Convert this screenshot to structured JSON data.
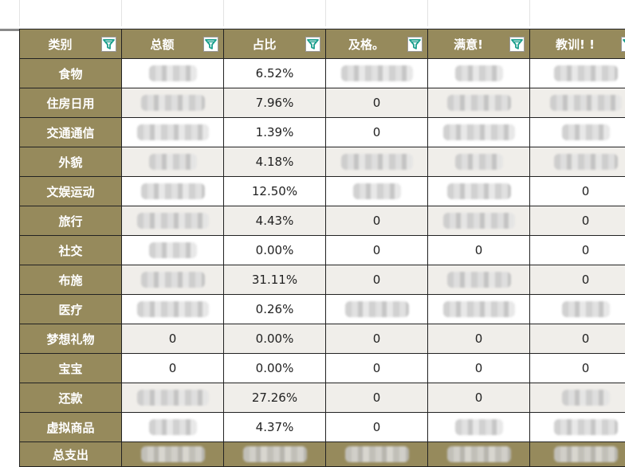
{
  "columns": [
    {
      "label": "类别"
    },
    {
      "label": "总额"
    },
    {
      "label": "占比"
    },
    {
      "label": "及格。"
    },
    {
      "label": "满意!"
    },
    {
      "label": "教训! !"
    }
  ],
  "rows": [
    {
      "category": "食物",
      "total": null,
      "share": "6.52%",
      "pass": null,
      "satisfied": null,
      "lesson": null
    },
    {
      "category": "住房日用",
      "total": null,
      "share": "7.96%",
      "pass": "0",
      "satisfied": null,
      "lesson": null
    },
    {
      "category": "交通通信",
      "total": null,
      "share": "1.39%",
      "pass": "0",
      "satisfied": null,
      "lesson": null
    },
    {
      "category": "外貌",
      "total": null,
      "share": "4.18%",
      "pass": null,
      "satisfied": null,
      "lesson": null
    },
    {
      "category": "文娱运动",
      "total": null,
      "share": "12.50%",
      "pass": null,
      "satisfied": null,
      "lesson": "0"
    },
    {
      "category": "旅行",
      "total": null,
      "share": "4.43%",
      "pass": "0",
      "satisfied": null,
      "lesson": "0"
    },
    {
      "category": "社交",
      "total": null,
      "share": "0.00%",
      "pass": "0",
      "satisfied": "0",
      "lesson": "0"
    },
    {
      "category": "布施",
      "total": null,
      "share": "31.11%",
      "pass": "0",
      "satisfied": null,
      "lesson": "0"
    },
    {
      "category": "医疗",
      "total": null,
      "share": "0.26%",
      "pass": null,
      "satisfied": null,
      "lesson": null
    },
    {
      "category": "梦想礼物",
      "total": "0",
      "share": "0.00%",
      "pass": "0",
      "satisfied": "0",
      "lesson": "0"
    },
    {
      "category": "宝宝",
      "total": "0",
      "share": "0.00%",
      "pass": "0",
      "satisfied": "0",
      "lesson": "0"
    },
    {
      "category": "还款",
      "total": null,
      "share": "27.26%",
      "pass": "0",
      "satisfied": "0",
      "lesson": null
    },
    {
      "category": "虚拟商品",
      "total": null,
      "share": "4.37%",
      "pass": "0",
      "satisfied": null,
      "lesson": null
    }
  ],
  "total_row": {
    "category": "总支出"
  },
  "icons": {
    "filter": "filter-icon"
  },
  "colors": {
    "header_bg": "#968a5c",
    "header_text": "#ffffff",
    "filter_accent": "#1a9e8c",
    "stripe": "#f0eeea"
  }
}
